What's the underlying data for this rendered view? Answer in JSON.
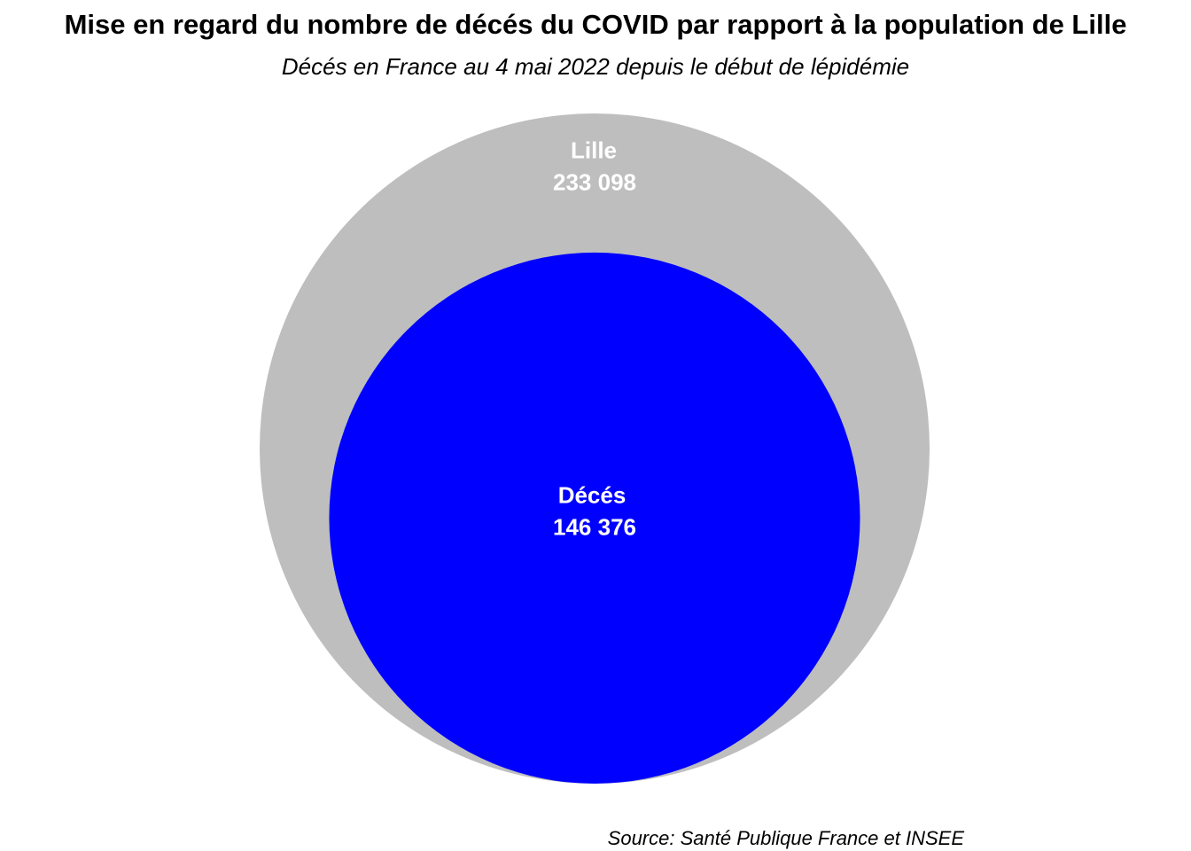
{
  "chart_data": {
    "type": "nested-circles",
    "title": "Mise en regard du nombre de décés du COVID par rapport à la population de Lille",
    "subtitle": "Décés en France au 4 mai 2022 depuis le début de lépidémie",
    "caption": "Source: Santé Publique France et INSEE",
    "series": [
      {
        "name": "Lille",
        "value": 233098,
        "value_label": "233 098",
        "color": "#bebebe"
      },
      {
        "name": "Décés",
        "value": 146376,
        "value_label": "146 376",
        "color": "#0000ff"
      }
    ],
    "label_color": "#ffffff"
  }
}
